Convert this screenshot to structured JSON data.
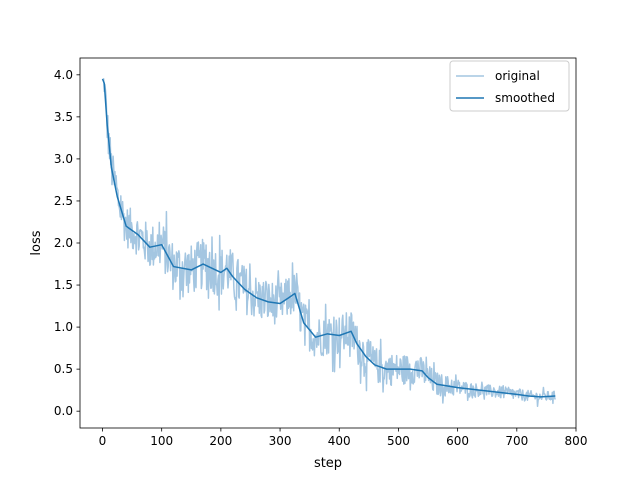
{
  "chart_data": {
    "type": "line",
    "title": "",
    "xlabel": "step",
    "ylabel": "loss",
    "xlim": [
      -38,
      800
    ],
    "ylim": [
      -0.2,
      4.2
    ],
    "x_ticks": [
      0,
      100,
      200,
      300,
      400,
      500,
      600,
      700,
      800
    ],
    "y_ticks": [
      0.0,
      0.5,
      1.0,
      1.5,
      2.0,
      2.5,
      3.0,
      3.5,
      4.0
    ],
    "x_tick_labels": [
      "0",
      "100",
      "200",
      "300",
      "400",
      "500",
      "600",
      "700",
      "800"
    ],
    "y_tick_labels": [
      "0.0",
      "0.5",
      "1.0",
      "1.5",
      "2.0",
      "2.5",
      "3.0",
      "3.5",
      "4.0"
    ],
    "grid": false,
    "legend": {
      "position": "top-right",
      "entries": [
        "original",
        "smoothed"
      ]
    },
    "colors": {
      "original": "#a4c6e1",
      "smoothed": "#1f77b4"
    },
    "x_range": [
      0,
      765
    ],
    "series": [
      {
        "name": "original",
        "style": "noisy",
        "noise_band": [
          [
            0,
            0.0
          ],
          [
            5,
            0.25
          ],
          [
            60,
            0.25
          ],
          [
            120,
            0.3
          ],
          [
            220,
            0.3
          ],
          [
            300,
            0.25
          ],
          [
            420,
            0.25
          ],
          [
            480,
            0.2
          ],
          [
            560,
            0.15
          ],
          [
            620,
            0.08
          ],
          [
            765,
            0.06
          ]
        ]
      },
      {
        "name": "smoothed",
        "x": [
          0,
          3,
          8,
          15,
          25,
          40,
          60,
          80,
          100,
          110,
          120,
          150,
          170,
          200,
          210,
          220,
          240,
          260,
          280,
          300,
          315,
          325,
          340,
          360,
          380,
          400,
          420,
          430,
          445,
          460,
          480,
          500,
          520,
          540,
          550,
          565,
          600,
          650,
          700,
          720,
          740,
          765
        ],
        "y": [
          3.95,
          3.9,
          3.4,
          2.9,
          2.55,
          2.2,
          2.1,
          1.95,
          1.98,
          1.85,
          1.72,
          1.68,
          1.75,
          1.65,
          1.7,
          1.6,
          1.45,
          1.35,
          1.3,
          1.28,
          1.35,
          1.4,
          1.05,
          0.88,
          0.92,
          0.9,
          0.95,
          0.8,
          0.65,
          0.55,
          0.5,
          0.5,
          0.5,
          0.48,
          0.4,
          0.32,
          0.28,
          0.24,
          0.2,
          0.18,
          0.17,
          0.18
        ]
      }
    ]
  }
}
